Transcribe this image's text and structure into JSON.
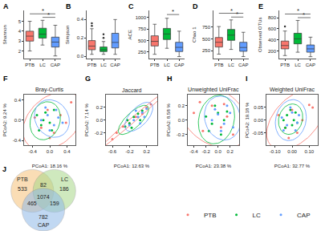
{
  "chart_data": [
    {
      "type": "box",
      "label": "A",
      "y_label": "Shannon",
      "grid": false,
      "categories": [
        "PTB",
        "LC",
        "CAP"
      ],
      "colors": [
        "#f8766d",
        "#00ba38",
        "#619cff"
      ],
      "q1": [
        3.0,
        3.3,
        2.4
      ],
      "median": [
        3.5,
        3.7,
        2.9
      ],
      "q3": [
        4.0,
        4.3,
        3.4
      ],
      "lowerfence": [
        2.0,
        2.6,
        1.5
      ],
      "upperfence": [
        5.0,
        5.1,
        4.6
      ],
      "outliers": [
        [],
        [],
        []
      ],
      "ylim": [
        1.2,
        6.1
      ],
      "yticks": [
        2,
        3,
        4,
        5
      ],
      "significance": [
        {
          "groups": [
            "PTB",
            "CAP"
          ],
          "y": 5.75,
          "label": "*"
        },
        {
          "groups": [
            "LC",
            "CAP"
          ],
          "y": 5.4,
          "label": "*"
        }
      ]
    },
    {
      "type": "box",
      "label": "B",
      "y_label": "Simpson",
      "grid": false,
      "categories": [
        "PTB",
        "LC",
        "CAP"
      ],
      "colors": [
        "#f8766d",
        "#00ba38",
        "#619cff"
      ],
      "q1": [
        0.07,
        0.05,
        0.09
      ],
      "median": [
        0.11,
        0.07,
        0.15
      ],
      "q3": [
        0.17,
        0.1,
        0.25
      ],
      "lowerfence": [
        0.02,
        0.02,
        0.02
      ],
      "upperfence": [
        0.3,
        0.16,
        0.4
      ],
      "outliers": [
        [
          0.33,
          0.36
        ],
        [
          0.2,
          0.24
        ],
        []
      ],
      "ylim": [
        -0.03,
        0.5
      ],
      "yticks": [
        {
          "value": 0,
          "label": "0.0"
        },
        0.2,
        0.4
      ],
      "significance": []
    },
    {
      "type": "box",
      "label": "C",
      "y_label": "ACE",
      "grid": false,
      "categories": [
        "PTB",
        "LC",
        "CAP"
      ],
      "colors": [
        "#f8766d",
        "#00ba38",
        "#619cff"
      ],
      "q1": [
        380,
        520,
        260
      ],
      "median": [
        480,
        640,
        350
      ],
      "q3": [
        600,
        760,
        460
      ],
      "lowerfence": [
        200,
        330,
        150
      ],
      "upperfence": [
        850,
        980,
        700
      ],
      "outliers": [
        [],
        [],
        []
      ],
      "ylim": [
        100,
        1150
      ],
      "yticks": [
        250,
        500,
        750,
        1000
      ],
      "significance": [
        {
          "groups": [
            "LC",
            "CAP"
          ],
          "y": 1060,
          "label": "*"
        }
      ]
    },
    {
      "type": "box",
      "label": "D",
      "y_label": "Chao 1",
      "grid": false,
      "categories": [
        "PTB",
        "LC",
        "CAP"
      ],
      "colors": [
        "#f8766d",
        "#00ba38",
        "#619cff"
      ],
      "q1": [
        330,
        470,
        240
      ],
      "median": [
        430,
        580,
        320
      ],
      "q3": [
        530,
        700,
        430
      ],
      "lowerfence": [
        180,
        280,
        130
      ],
      "upperfence": [
        760,
        900,
        640
      ],
      "outliers": [
        [],
        [],
        []
      ],
      "ylim": [
        80,
        1100
      ],
      "yticks": [
        250,
        500,
        750
      ],
      "significance": [
        {
          "groups": [
            "PTB",
            "CAP"
          ],
          "y": 1040,
          "label": "*"
        },
        {
          "groups": [
            "LC",
            "CAP"
          ],
          "y": 960,
          "label": "*"
        }
      ]
    },
    {
      "type": "box",
      "label": "E",
      "y_label": "Observed OTUs",
      "grid": false,
      "categories": [
        "PTB",
        "LC",
        "CAP"
      ],
      "colors": [
        "#f8766d",
        "#00ba38",
        "#619cff"
      ],
      "q1": [
        240,
        330,
        180
      ],
      "median": [
        300,
        420,
        240
      ],
      "q3": [
        380,
        520,
        310
      ],
      "lowerfence": [
        120,
        180,
        100
      ],
      "upperfence": [
        560,
        750,
        450
      ],
      "outliers": [
        [
          640
        ],
        [],
        []
      ],
      "ylim": [
        60,
        930
      ],
      "yticks": [
        200,
        400,
        600,
        800
      ],
      "significance": [
        {
          "groups": [
            "PTB",
            "CAP"
          ],
          "y": 865,
          "label": "*"
        },
        {
          "groups": [
            "LC",
            "CAP"
          ],
          "y": 800,
          "label": "*"
        }
      ]
    },
    {
      "type": "scatter",
      "label": "F",
      "title": "Bray-Curtis",
      "x_label": "PCoA1: 18.16 %",
      "y_label": "PCoA2: 9.24 %",
      "grid": false,
      "legend": "bottom right",
      "xlim": [
        -0.6,
        0.6
      ],
      "xticks": [
        -0.4,
        {
          "value": 0,
          "label": "0.0"
        },
        0.4
      ],
      "ylim": [
        -0.5,
        0.5
      ],
      "yticks": [
        -0.4,
        {
          "value": 0,
          "label": "0.0"
        },
        0.4
      ],
      "series": [
        {
          "name": "PTB",
          "color": "#f8766d",
          "x": [
            -0.35,
            -0.2,
            -0.05,
            0.1,
            0.25,
            0.38,
            0.5,
            0.0
          ],
          "y": [
            0.05,
            -0.15,
            0.2,
            -0.25,
            0.1,
            -0.05,
            0.35,
            -0.35
          ]
        },
        {
          "name": "LC",
          "color": "#00ba38",
          "x": [
            -0.3,
            -0.2,
            -0.1,
            0.0,
            0.1,
            -0.25,
            0.05,
            -0.15
          ],
          "y": [
            0.1,
            -0.1,
            0.15,
            -0.05,
            0.2,
            -0.2,
            -0.2,
            0.0
          ]
        },
        {
          "name": "CAP",
          "color": "#619cff",
          "x": [
            -0.2,
            -0.05,
            0.1,
            0.2,
            0.0,
            -0.1,
            0.15,
            0.3
          ],
          "y": [
            0.0,
            0.1,
            -0.1,
            0.05,
            -0.2,
            0.25,
            0.2,
            -0.05
          ]
        }
      ]
    },
    {
      "type": "scatter",
      "label": "G",
      "title": "Jaccard",
      "x_label": "PCoA1: 12.63 %",
      "y_label": "PCoA2: 7.14 %",
      "grid": false,
      "xlim": [
        -0.75,
        0.45
      ],
      "xticks": [
        -0.6,
        -0.2,
        0.2
      ],
      "ylim": [
        -0.4,
        0.4
      ],
      "yticks": [
        -0.2,
        {
          "value": 0,
          "label": "0.0"
        },
        0.2
      ],
      "series": [
        {
          "name": "PTB",
          "color": "#f8766d",
          "x": [
            -0.5,
            -0.35,
            -0.2,
            -0.05,
            0.1,
            0.2,
            0.3,
            -0.6
          ],
          "y": [
            -0.2,
            -0.1,
            -0.05,
            0.05,
            0.1,
            0.2,
            0.25,
            -0.3
          ]
        },
        {
          "name": "LC",
          "color": "#00ba38",
          "x": [
            -0.3,
            -0.2,
            -0.1,
            0.0,
            0.1,
            -0.15,
            0.05,
            -0.25
          ],
          "y": [
            -0.1,
            -0.05,
            0.05,
            0.1,
            0.15,
            -0.12,
            0.0,
            0.0
          ]
        },
        {
          "name": "CAP",
          "color": "#619cff",
          "x": [
            -0.2,
            -0.1,
            0.0,
            0.1,
            0.2,
            0.05,
            -0.05,
            0.15
          ],
          "y": [
            -0.08,
            0.0,
            0.05,
            0.12,
            0.18,
            -0.05,
            0.15,
            0.05
          ]
        }
      ]
    },
    {
      "type": "scatter",
      "label": "H",
      "title": "Unweighted UniFrac",
      "x_label": "PCoA1: 23.38 %",
      "y_label": "PCoA2: 8.58 %",
      "grid": false,
      "xlim": [
        -0.5,
        0.35
      ],
      "xticks": [
        -0.4,
        -0.2,
        {
          "value": 0,
          "label": "0.0"
        },
        0.2
      ],
      "ylim": [
        -0.35,
        0.35
      ],
      "yticks": [
        -0.2,
        {
          "value": 0,
          "label": "0.0"
        },
        0.2
      ],
      "series": [
        {
          "name": "PTB",
          "color": "#f8766d",
          "x": [
            -0.4,
            -0.25,
            -0.1,
            0.05,
            0.15,
            0.25,
            -0.3,
            0.1
          ],
          "y": [
            0.1,
            -0.15,
            0.2,
            -0.1,
            0.05,
            -0.2,
            0.25,
            0.22
          ]
        },
        {
          "name": "LC",
          "color": "#00ba38",
          "x": [
            -0.2,
            -0.1,
            0.0,
            0.1,
            -0.15,
            0.05,
            0.15,
            -0.05
          ],
          "y": [
            0.05,
            -0.05,
            0.1,
            0.0,
            -0.15,
            -0.2,
            0.12,
            0.2
          ]
        },
        {
          "name": "CAP",
          "color": "#619cff",
          "x": [
            -0.1,
            0.0,
            0.1,
            0.2,
            0.05,
            -0.05,
            0.15,
            0.25
          ],
          "y": [
            0.0,
            0.08,
            -0.05,
            0.1,
            -0.15,
            0.15,
            0.2,
            -0.1
          ]
        }
      ]
    },
    {
      "type": "scatter",
      "label": "I",
      "title": "Weighted UniFrac",
      "x_label": "PCoA1: 32.77 %",
      "y_label": "PCoA2: 19.18 %",
      "grid": false,
      "xlim": [
        -0.15,
        0.15
      ],
      "xticks": [
        {
          "value": -0.1,
          "label": "-0.10"
        },
        {
          "value": 0,
          "label": "0.00"
        },
        {
          "value": 0.1,
          "label": "0.10"
        }
      ],
      "ylim": [
        -0.1,
        0.1
      ],
      "yticks": [
        -0.05,
        {
          "value": 0,
          "label": "0.00"
        },
        0.05
      ],
      "series": [
        {
          "name": "PTB",
          "color": "#f8766d",
          "x": [
            -0.08,
            -0.04,
            0.0,
            0.03,
            0.06,
            0.1,
            0.12,
            -0.02
          ],
          "y": [
            0.02,
            -0.03,
            0.04,
            -0.05,
            0.0,
            0.06,
            0.05,
            -0.07
          ]
        },
        {
          "name": "LC",
          "color": "#00ba38",
          "x": [
            -0.05,
            -0.03,
            0.0,
            0.02,
            -0.01,
            0.03,
            -0.04,
            0.01
          ],
          "y": [
            0.0,
            0.02,
            -0.02,
            0.03,
            0.04,
            -0.01,
            -0.03,
            0.0
          ]
        },
        {
          "name": "CAP",
          "color": "#619cff",
          "x": [
            -0.06,
            -0.03,
            0.0,
            0.02,
            0.04,
            -0.01,
            0.03,
            -0.05
          ],
          "y": [
            0.01,
            -0.02,
            0.03,
            -0.04,
            0.02,
            0.05,
            -0.01,
            -0.04
          ]
        }
      ]
    },
    {
      "type": "venn",
      "label": "J",
      "sets": [
        {
          "name": "PTB",
          "color": "#f6c27a"
        },
        {
          "name": "LC",
          "color": "#a8d88a"
        },
        {
          "name": "CAP",
          "color": "#8fb8e8"
        }
      ],
      "regions": [
        {
          "sets": [
            "PTB"
          ],
          "value": 533
        },
        {
          "sets": [
            "LC"
          ],
          "value": 186
        },
        {
          "sets": [
            "CAP"
          ],
          "value": 782
        },
        {
          "sets": [
            "PTB",
            "LC"
          ],
          "value": 82
        },
        {
          "sets": [
            "PTB",
            "CAP"
          ],
          "value": 465
        },
        {
          "sets": [
            "LC",
            "CAP"
          ],
          "value": 159
        },
        {
          "sets": [
            "PTB",
            "LC",
            "CAP"
          ],
          "value": 1074
        }
      ]
    }
  ]
}
